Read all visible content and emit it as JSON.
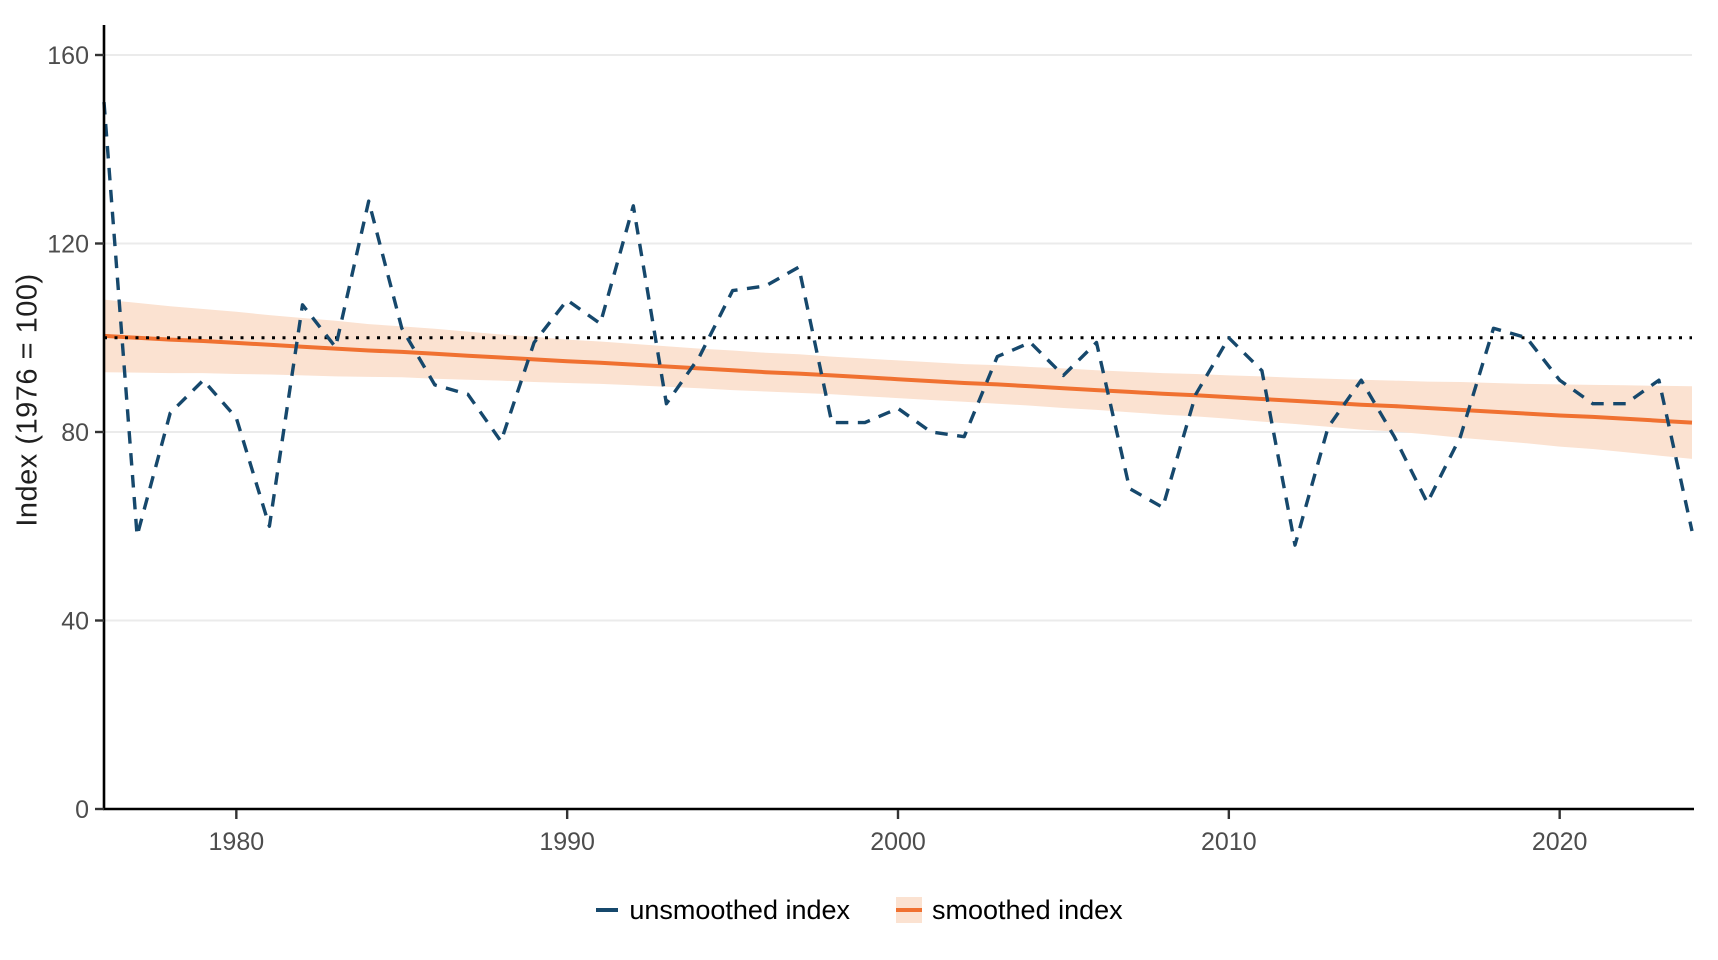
{
  "figure": {
    "background": "#ffffff",
    "colors": {
      "unsmoothed_line": "#16486c",
      "smoothed_line": "#f07131",
      "ribbon_fill": "#fbe2d1",
      "reference_line": "#000000",
      "gridline": "#ebebeb",
      "axis_line": "#000000",
      "tick_mark": "#333333",
      "tick_label": "#4d4d4d",
      "axis_title": "#1f1f1f",
      "legend_text": "#000000"
    }
  },
  "chart_data": {
    "type": "line",
    "title": "",
    "xlabel": "",
    "ylabel": "Index (1976 = 100)",
    "xlim": [
      1976,
      2024
    ],
    "ylim": [
      0,
      166
    ],
    "x_ticks": [
      1980,
      1990,
      2000,
      2010,
      2020
    ],
    "y_ticks": [
      0,
      40,
      80,
      120,
      160
    ],
    "grid": "horizontal-only",
    "legend_position": "bottom",
    "x": [
      1976,
      1977,
      1978,
      1979,
      1980,
      1981,
      1982,
      1983,
      1984,
      1985,
      1986,
      1987,
      1988,
      1989,
      1990,
      1991,
      1992,
      1993,
      1994,
      1995,
      1996,
      1997,
      1998,
      1999,
      2000,
      2001,
      2002,
      2003,
      2004,
      2005,
      2006,
      2007,
      2008,
      2009,
      2010,
      2011,
      2012,
      2013,
      2014,
      2015,
      2016,
      2017,
      2018,
      2019,
      2020,
      2021,
      2022,
      2023,
      2024
    ],
    "series": [
      {
        "name": "unsmoothed index",
        "style": "dashed",
        "color": "#16486c",
        "values": [
          150,
          58,
          84,
          91,
          83,
          60,
          107,
          98,
          129,
          102,
          90,
          88,
          78,
          99,
          108,
          103,
          128,
          86,
          96,
          110,
          111,
          115,
          82,
          82,
          85,
          80,
          79,
          96,
          99,
          92,
          99,
          68,
          64,
          88,
          100,
          93,
          56,
          81,
          91,
          79,
          65,
          79,
          102,
          100,
          91,
          86,
          86,
          91,
          59
        ]
      },
      {
        "name": "smoothed index",
        "style": "solid-with-ribbon",
        "color": "#f07131",
        "ribbon_color": "#fbe2d1",
        "values": [
          100.4,
          100.0,
          99.6,
          99.3,
          98.9,
          98.5,
          98.1,
          97.7,
          97.3,
          97.0,
          96.6,
          96.2,
          95.8,
          95.4,
          95.0,
          94.7,
          94.3,
          93.9,
          93.5,
          93.1,
          92.7,
          92.4,
          92.0,
          91.6,
          91.2,
          90.8,
          90.4,
          90.1,
          89.7,
          89.3,
          88.9,
          88.5,
          88.1,
          87.8,
          87.4,
          87.0,
          86.6,
          86.2,
          85.8,
          85.5,
          85.1,
          84.7,
          84.3,
          83.9,
          83.5,
          83.2,
          82.8,
          82.4,
          82.0
        ],
        "ci_upper": [
          108.1,
          107.4,
          106.7,
          106.1,
          105.5,
          104.8,
          104.2,
          103.6,
          102.9,
          102.4,
          101.9,
          101.3,
          100.7,
          100.2,
          99.6,
          99.2,
          98.7,
          98.2,
          97.7,
          97.3,
          96.8,
          96.5,
          96.0,
          95.6,
          95.2,
          94.8,
          94.4,
          94.2,
          93.8,
          93.5,
          93.1,
          92.8,
          92.5,
          92.3,
          92.0,
          91.8,
          91.5,
          91.3,
          91.1,
          90.9,
          90.7,
          90.6,
          90.4,
          90.2,
          90.1,
          90.0,
          89.9,
          89.8,
          89.7
        ],
        "ci_lower": [
          92.7,
          92.6,
          92.5,
          92.5,
          92.3,
          92.2,
          92.0,
          91.8,
          91.7,
          91.6,
          91.3,
          91.1,
          90.9,
          90.6,
          90.4,
          90.2,
          89.9,
          89.6,
          89.3,
          88.9,
          88.6,
          88.3,
          88.0,
          87.6,
          87.2,
          86.8,
          86.4,
          86.0,
          85.6,
          85.1,
          84.7,
          84.2,
          83.7,
          83.3,
          82.8,
          82.2,
          81.7,
          81.1,
          80.5,
          80.1,
          79.5,
          78.8,
          78.2,
          77.6,
          76.9,
          76.4,
          75.7,
          75.0,
          74.3
        ]
      }
    ],
    "reference_line": {
      "y": 100,
      "style": "dotted",
      "color": "#000000"
    }
  },
  "legend": {
    "items": [
      {
        "label": "unsmoothed index",
        "key": "dashed-line",
        "color": "#16486c"
      },
      {
        "label": "smoothed index",
        "key": "line-on-ribbon",
        "color": "#f07131",
        "ribbon_color": "#fbe2d1"
      }
    ]
  }
}
